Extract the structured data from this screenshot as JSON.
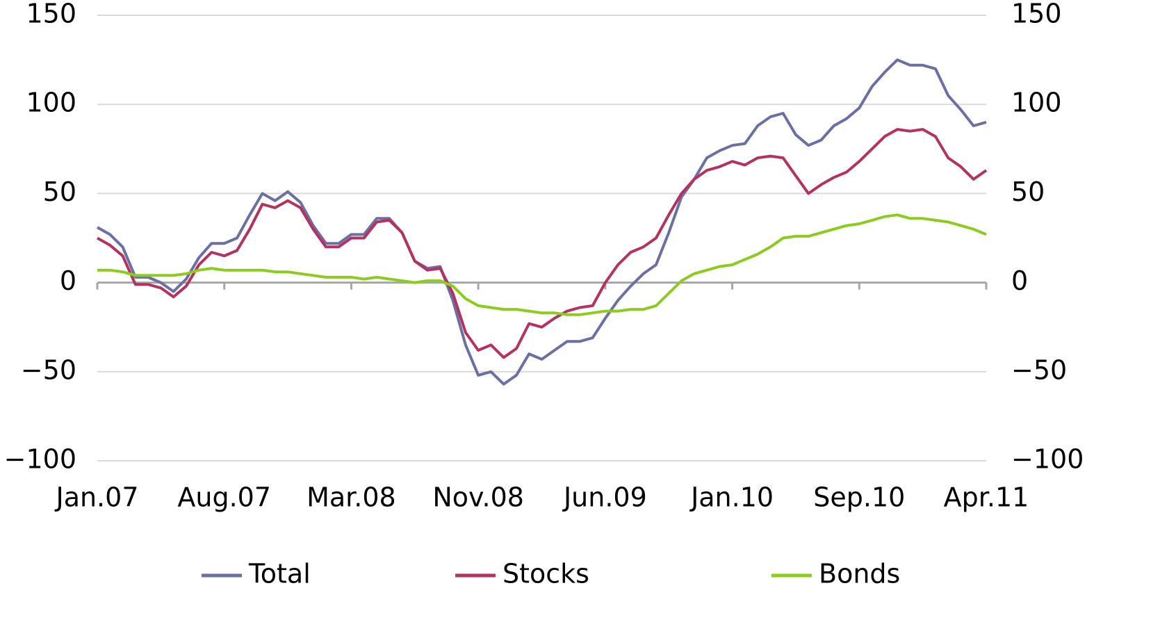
{
  "chart_data": {
    "type": "line",
    "categories": [
      "Jan.07",
      null,
      null,
      null,
      null,
      null,
      null,
      null,
      null,
      null,
      "Aug.07",
      null,
      null,
      null,
      null,
      null,
      null,
      null,
      null,
      null,
      "Mar.08",
      null,
      null,
      null,
      null,
      null,
      null,
      null,
      null,
      null,
      "Nov.08",
      null,
      null,
      null,
      null,
      null,
      null,
      null,
      null,
      null,
      "Jun.09",
      null,
      null,
      null,
      null,
      null,
      null,
      null,
      null,
      null,
      "Jan.10",
      null,
      null,
      null,
      null,
      null,
      null,
      null,
      null,
      null,
      "Sep.10",
      null,
      null,
      null,
      null,
      null,
      null,
      null,
      null,
      null,
      "Apr.11"
    ],
    "series": [
      {
        "name": "Total",
        "color": "#6b6fa3",
        "values": [
          31,
          27,
          20,
          3,
          3,
          0,
          -5,
          2,
          14,
          22,
          22,
          25,
          38,
          50,
          46,
          51,
          45,
          32,
          22,
          22,
          27,
          27,
          36,
          36,
          28,
          12,
          8,
          9,
          -10,
          -35,
          -52,
          -50,
          -57,
          -52,
          -40,
          -43,
          -38,
          -33,
          -33,
          -31,
          -20,
          -10,
          -2,
          5,
          10,
          28,
          48,
          58,
          70,
          74,
          77,
          78,
          88,
          93,
          95,
          83,
          77,
          80,
          88,
          92,
          98,
          110,
          118,
          125,
          122,
          122,
          120,
          105,
          97,
          88,
          90
        ]
      },
      {
        "name": "Stocks",
        "color": "#b5325f",
        "values": [
          25,
          21,
          15,
          -1,
          -1,
          -3,
          -8,
          -2,
          10,
          17,
          15,
          18,
          30,
          44,
          42,
          46,
          42,
          30,
          20,
          20,
          25,
          25,
          34,
          35,
          28,
          12,
          7,
          8,
          -6,
          -28,
          -38,
          -35,
          -42,
          -37,
          -23,
          -25,
          -20,
          -16,
          -14,
          -13,
          0,
          10,
          17,
          20,
          25,
          38,
          50,
          58,
          63,
          65,
          68,
          66,
          70,
          71,
          70,
          60,
          50,
          55,
          59,
          62,
          68,
          75,
          82,
          86,
          85,
          86,
          82,
          70,
          65,
          58,
          63
        ]
      },
      {
        "name": "Bonds",
        "color": "#8ccc1e",
        "values": [
          7,
          7,
          6,
          4,
          4,
          4,
          4,
          5,
          7,
          8,
          7,
          7,
          7,
          7,
          6,
          6,
          5,
          4,
          3,
          3,
          3,
          2,
          3,
          2,
          1,
          0,
          1,
          1,
          -2,
          -9,
          -13,
          -14,
          -15,
          -15,
          -16,
          -17,
          -17,
          -18,
          -18,
          -17,
          -16,
          -16,
          -15,
          -15,
          -13,
          -6,
          1,
          5,
          7,
          9,
          10,
          13,
          16,
          20,
          25,
          26,
          26,
          28,
          30,
          32,
          33,
          35,
          37,
          38,
          36,
          36,
          35,
          34,
          32,
          30,
          27
        ]
      }
    ],
    "ylim": [
      -100,
      150
    ],
    "yticks": [
      {
        "value": -100,
        "label": "−100"
      },
      {
        "value": -50,
        "label": "−50"
      },
      0,
      50,
      100,
      150
    ],
    "y2lim": [
      -100,
      150
    ],
    "y2ticks": [
      {
        "value": -100,
        "label": "−100"
      },
      {
        "value": -50,
        "label": "−50"
      },
      0,
      50,
      100,
      150
    ],
    "grid": true,
    "legend": "bottom"
  }
}
